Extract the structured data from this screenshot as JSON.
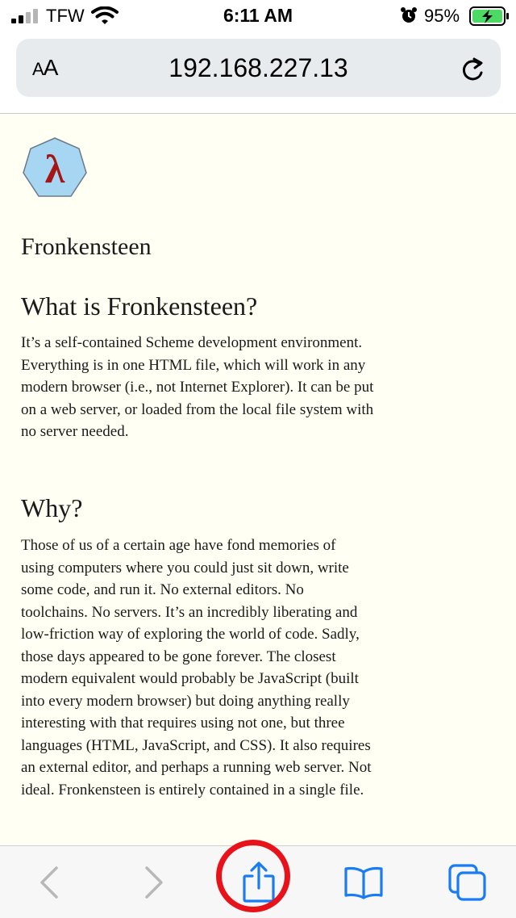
{
  "status_bar": {
    "carrier": "TFW",
    "time": "6:11 AM",
    "battery_percent": "95%",
    "icons": [
      "signal-icon",
      "wifi-icon",
      "alarm-icon",
      "battery-charging-icon"
    ],
    "battery_color": "#4cd964"
  },
  "url_bar": {
    "text_size_label_small": "A",
    "text_size_label_large": "A",
    "address": "192.168.227.13",
    "icons": [
      "reload-icon"
    ]
  },
  "page": {
    "logo_glyph": "λ",
    "site_title": "Fronkensteen",
    "section1_heading": "What is Fronkensteen?",
    "section1_body": "It’s a self-contained Scheme development environment. Everything is in one HTML file, which will work in any modern browser (i.e., not Internet Explorer). It can be put on a web server, or loaded from the local file system with no server needed.",
    "section2_heading": "Why?",
    "section2_body": "Those of us of a certain age have fond memories of using computers where you could just sit down, write some code, and run it. No external editors. No toolchains. No servers. It’s an incredibly liberating and low-friction way of exploring the world of code. Sadly, those days appeared to be gone forever. The closest modern equivalent would probably be JavaScript (built into every modern browser) but doing anything really interesting with that requires using not one, but three languages (HTML, JavaScript, and CSS). It also requires an external editor, and perhaps a running web server. Not ideal. Fronkensteen is entirely contained in a single file."
  },
  "toolbar": {
    "icons": [
      "back-icon",
      "forward-icon",
      "share-icon",
      "bookmarks-icon",
      "tabs-icon"
    ],
    "accent_color": "#1a7cf5",
    "disabled_color": "#b8b8b8",
    "highlight_color": "#e8121a"
  }
}
